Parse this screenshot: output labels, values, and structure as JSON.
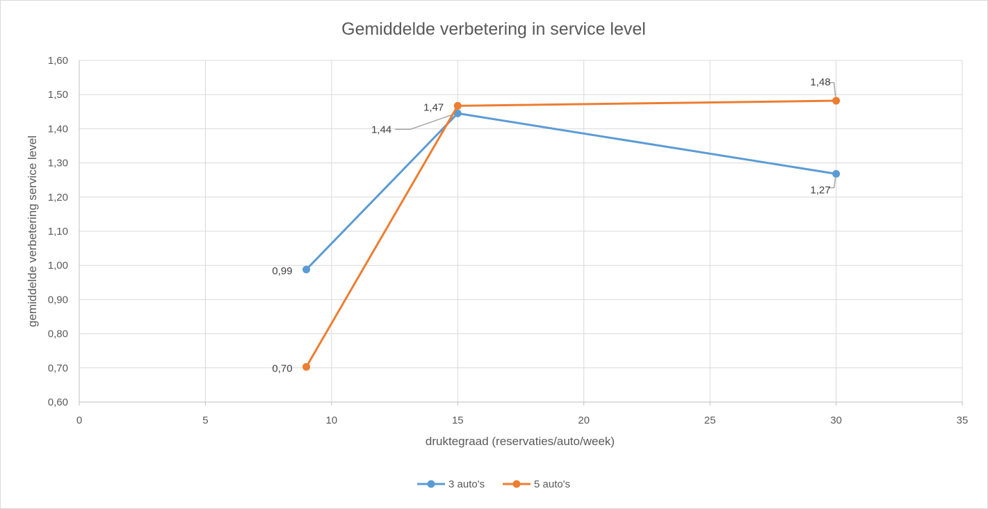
{
  "chart_data": {
    "type": "line",
    "title": "Gemiddelde verbetering in service level",
    "xlabel": "druktegraad (reservaties/auto/week)",
    "ylabel": "gemiddelde verbetering service level",
    "xlim": [
      0,
      35
    ],
    "ylim": [
      0.6,
      1.6
    ],
    "x_ticks": [
      0,
      5,
      10,
      15,
      20,
      25,
      30,
      35
    ],
    "y_ticks": [
      0.6,
      0.7,
      0.8,
      0.9,
      1.0,
      1.1,
      1.2,
      1.3,
      1.4,
      1.5,
      1.6
    ],
    "y_tick_labels": [
      "0,60",
      "0,70",
      "0,80",
      "0,90",
      "1,00",
      "1,10",
      "1,20",
      "1,30",
      "1,40",
      "1,50",
      "1,60"
    ],
    "grid": true,
    "legend_position": "bottom",
    "series": [
      {
        "name": "3 auto's",
        "color": "#5b9bd5",
        "x": [
          9,
          15,
          30
        ],
        "y": [
          0.988,
          1.445,
          1.268
        ],
        "labels": [
          "0,99",
          "1,44",
          "1,27"
        ]
      },
      {
        "name": "5 auto's",
        "color": "#ed7d31",
        "x": [
          9,
          15,
          30
        ],
        "y": [
          0.703,
          1.467,
          1.482
        ],
        "labels": [
          "0,70",
          "1,47",
          "1,48"
        ]
      }
    ]
  }
}
